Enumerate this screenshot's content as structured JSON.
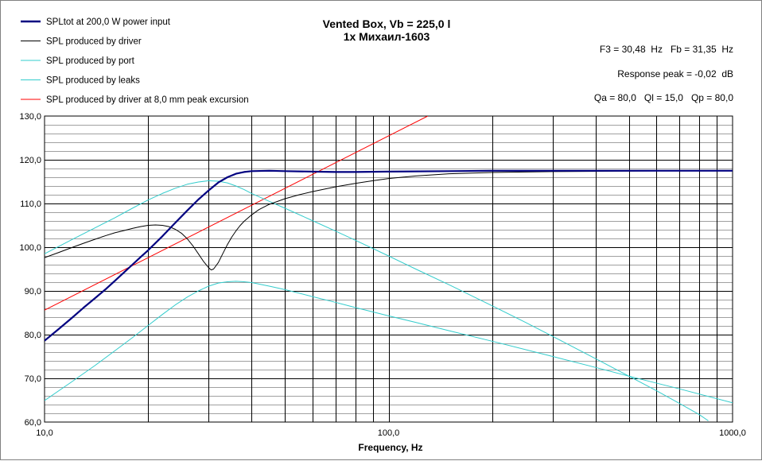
{
  "chart_data": {
    "type": "line",
    "title": "Vented Box, Vb = 225,0 l",
    "subtitle": "1x Михаил-1603",
    "xlabel": "Frequency, Hz",
    "ylabel": "",
    "x_scale": "log",
    "xlim": [
      10,
      1000
    ],
    "ylim": [
      60,
      130
    ],
    "grid": true,
    "legend_position": "top-left",
    "x_tick_labels": [
      {
        "value": 10,
        "label": "10,0"
      },
      {
        "value": 100,
        "label": "100,0"
      },
      {
        "value": 1000,
        "label": "1000,0"
      }
    ],
    "y_tick_labels": [
      {
        "value": 60,
        "label": "60,0"
      },
      {
        "value": 70,
        "label": "70,0"
      },
      {
        "value": 80,
        "label": "80,0"
      },
      {
        "value": 90,
        "label": "90,0"
      },
      {
        "value": 100,
        "label": "100,0"
      },
      {
        "value": 110,
        "label": "110,0"
      },
      {
        "value": 120,
        "label": "120,0"
      },
      {
        "value": 130,
        "label": "130,0"
      }
    ],
    "annotations": [
      "F3 = 30,48  Hz   Fb = 31,35  Hz",
      "Response peak = -0,02  dB",
      "Qa = 80,0   Ql = 15,0   Qp = 80,0"
    ],
    "series": [
      {
        "name": "SPLtot at 200,0 W power input",
        "color": "#000080",
        "points": [
          [
            10,
            78.6
          ],
          [
            11,
            81.3
          ],
          [
            12,
            83.8
          ],
          [
            13,
            86.2
          ],
          [
            14,
            88.3
          ],
          [
            15,
            90.3
          ],
          [
            16,
            92.3
          ],
          [
            17,
            94.2
          ],
          [
            18,
            96.0
          ],
          [
            19,
            97.7
          ],
          [
            20,
            99.3
          ],
          [
            22,
            102.5
          ],
          [
            24,
            105.6
          ],
          [
            26,
            108.4
          ],
          [
            28,
            110.9
          ],
          [
            30,
            113.0
          ],
          [
            32,
            114.8
          ],
          [
            34,
            116.0
          ],
          [
            36,
            116.8
          ],
          [
            38,
            117.2
          ],
          [
            40,
            117.4
          ],
          [
            45,
            117.5
          ],
          [
            50,
            117.4
          ],
          [
            60,
            117.3
          ],
          [
            70,
            117.2
          ],
          [
            80,
            117.2
          ],
          [
            100,
            117.3
          ],
          [
            150,
            117.4
          ],
          [
            200,
            117.5
          ],
          [
            300,
            117.5
          ],
          [
            500,
            117.5
          ],
          [
            700,
            117.5
          ],
          [
            1000,
            117.5
          ]
        ]
      },
      {
        "name": "SPL produced by driver",
        "color": "#000000",
        "points": [
          [
            10,
            97.6
          ],
          [
            11,
            98.8
          ],
          [
            12,
            99.9
          ],
          [
            13,
            100.9
          ],
          [
            14,
            101.8
          ],
          [
            15,
            102.6
          ],
          [
            16,
            103.3
          ],
          [
            17,
            103.8
          ],
          [
            18,
            104.3
          ],
          [
            19,
            104.7
          ],
          [
            20,
            105.0
          ],
          [
            21,
            105.1
          ],
          [
            22,
            105.0
          ],
          [
            23,
            104.7
          ],
          [
            24,
            104.1
          ],
          [
            25,
            103.2
          ],
          [
            26,
            101.9
          ],
          [
            27,
            100.3
          ],
          [
            28,
            98.5
          ],
          [
            29,
            96.7
          ],
          [
            30,
            95.3
          ],
          [
            30.5,
            94.8
          ],
          [
            31,
            95.0
          ],
          [
            32,
            96.5
          ],
          [
            33,
            98.6
          ],
          [
            34,
            100.6
          ],
          [
            35,
            102.3
          ],
          [
            36,
            103.7
          ],
          [
            37,
            104.9
          ],
          [
            38,
            105.9
          ],
          [
            40,
            107.4
          ],
          [
            42,
            108.6
          ],
          [
            45,
            109.8
          ],
          [
            50,
            111.1
          ],
          [
            55,
            112.0
          ],
          [
            60,
            112.7
          ],
          [
            70,
            113.8
          ],
          [
            80,
            114.6
          ],
          [
            90,
            115.2
          ],
          [
            100,
            115.7
          ],
          [
            120,
            116.3
          ],
          [
            150,
            116.8
          ],
          [
            200,
            117.1
          ],
          [
            300,
            117.3
          ],
          [
            500,
            117.4
          ],
          [
            700,
            117.5
          ],
          [
            1000,
            117.5
          ]
        ]
      },
      {
        "name": "SPL produced by port",
        "color": "#33CCCC",
        "points": [
          [
            10,
            98.5
          ],
          [
            12,
            101.7
          ],
          [
            14,
            104.4
          ],
          [
            16,
            106.7
          ],
          [
            18,
            108.9
          ],
          [
            20,
            110.8
          ],
          [
            22,
            112.3
          ],
          [
            24,
            113.5
          ],
          [
            26,
            114.4
          ],
          [
            28,
            114.9
          ],
          [
            30,
            115.2
          ],
          [
            32,
            115.1
          ],
          [
            34,
            114.7
          ],
          [
            36,
            114.0
          ],
          [
            38,
            113.2
          ],
          [
            40,
            112.3
          ],
          [
            45,
            110.5
          ],
          [
            50,
            108.9
          ],
          [
            60,
            106.1
          ],
          [
            70,
            103.7
          ],
          [
            80,
            101.6
          ],
          [
            100,
            98.0
          ],
          [
            120,
            95.0
          ],
          [
            150,
            91.4
          ],
          [
            200,
            86.6
          ],
          [
            250,
            82.8
          ],
          [
            300,
            79.6
          ],
          [
            400,
            74.5
          ],
          [
            500,
            70.5
          ],
          [
            600,
            67.2
          ],
          [
            700,
            64.3
          ],
          [
            800,
            61.7
          ],
          [
            850,
            60.3
          ]
        ]
      },
      {
        "name": "SPL produced by leaks",
        "color": "#33CCCC",
        "points": [
          [
            10,
            64.9
          ],
          [
            12,
            69.2
          ],
          [
            14,
            72.9
          ],
          [
            16,
            76.3
          ],
          [
            18,
            79.3
          ],
          [
            20,
            82.1
          ],
          [
            22,
            84.6
          ],
          [
            24,
            86.8
          ],
          [
            26,
            88.6
          ],
          [
            28,
            90.0
          ],
          [
            30,
            91.1
          ],
          [
            32,
            91.8
          ],
          [
            34,
            92.1
          ],
          [
            36,
            92.2
          ],
          [
            38,
            92.1
          ],
          [
            40,
            91.9
          ],
          [
            45,
            91.1
          ],
          [
            50,
            90.3
          ],
          [
            60,
            88.7
          ],
          [
            70,
            87.4
          ],
          [
            80,
            86.2
          ],
          [
            100,
            84.3
          ],
          [
            120,
            82.8
          ],
          [
            150,
            80.9
          ],
          [
            200,
            78.5
          ],
          [
            300,
            75.0
          ],
          [
            400,
            72.5
          ],
          [
            500,
            70.5
          ],
          [
            700,
            67.6
          ],
          [
            1000,
            64.4
          ]
        ]
      },
      {
        "name": "SPL produced by driver at 8,0 mm peak excursion",
        "color": "#FF0000",
        "points": [
          [
            10,
            85.6
          ],
          [
            20,
            97.6
          ],
          [
            40,
            109.6
          ],
          [
            80,
            121.6
          ],
          [
            130,
            130
          ]
        ]
      }
    ]
  }
}
